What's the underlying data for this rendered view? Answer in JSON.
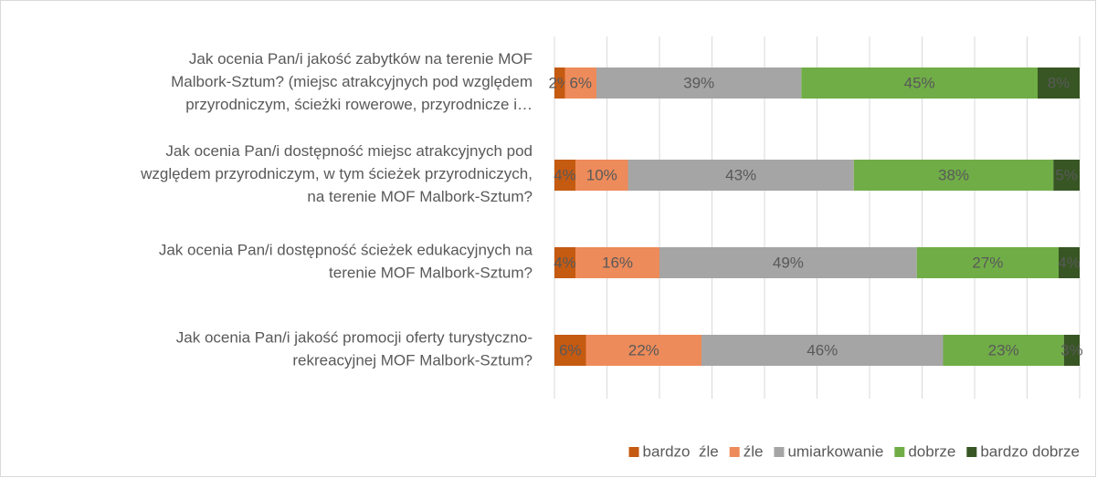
{
  "chart_data": {
    "type": "bar",
    "orientation": "horizontal",
    "stacked": true,
    "categories": [
      "Jak ocenia Pan/i jakość zabytków na terenie MOF\nMalbork-Sztum? (miejsc atrakcyjnych pod względem\nprzyrodniczym, ścieżki rowerowe, przyrodnicze i…",
      "Jak ocenia Pan/i dostępność miejsc atrakcyjnych pod\nwzględem przyrodniczym, w tym ścieżek przyrodniczych,\nna terenie MOF Malbork-Sztum?",
      "Jak ocenia Pan/i dostępność ścieżek edukacyjnych na\nterenie MOF Malbork-Sztum?",
      "Jak ocenia Pan/i jakość promocji oferty turystyczno-\nrekreacyjnej MOF Malbork-Sztum?"
    ],
    "series": [
      {
        "name": "bardzo  źle",
        "color": "#c55a11",
        "values": [
          2,
          4,
          4,
          6
        ],
        "value_labels": [
          "2%",
          "4%",
          "4%",
          "6%"
        ]
      },
      {
        "name": "źle",
        "color": "#ed8b5a",
        "values": [
          6,
          10,
          16,
          22
        ],
        "value_labels": [
          "6%",
          "10%",
          "16%",
          "22%"
        ]
      },
      {
        "name": "umiarkowanie",
        "color": "#a5a5a5",
        "values": [
          39,
          43,
          49,
          46
        ],
        "value_labels": [
          "39%",
          "43%",
          "49%",
          "46%"
        ]
      },
      {
        "name": "dobrze",
        "color": "#70ad47",
        "values": [
          45,
          38,
          27,
          23
        ],
        "value_labels": [
          "45%",
          "38%",
          "27%",
          "23%"
        ]
      },
      {
        "name": "bardzo dobrze",
        "color": "#375623",
        "values": [
          8,
          5,
          4,
          3
        ],
        "value_labels": [
          "8%",
          "5%",
          "4%",
          "3%"
        ]
      }
    ],
    "xlim": [
      0,
      100
    ],
    "xticks": [
      0,
      10,
      20,
      30,
      40,
      50,
      60,
      70,
      80,
      90,
      100
    ],
    "grid": true,
    "legend": "bottom"
  }
}
